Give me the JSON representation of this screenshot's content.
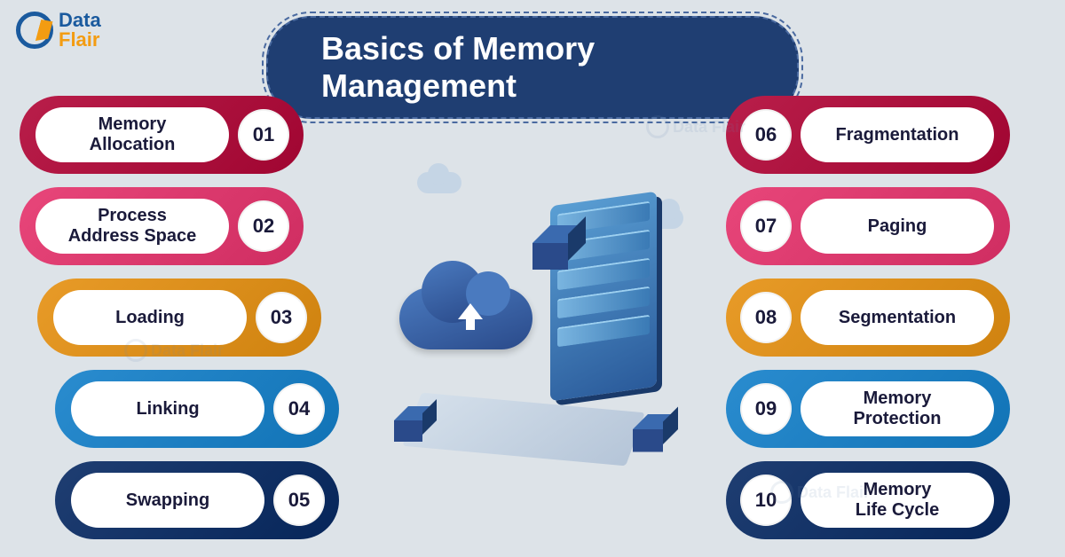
{
  "logo": {
    "top": "Data",
    "bottom": "Flair"
  },
  "title": "Basics of Memory Management",
  "colors": {
    "crimson": "#b91e4a",
    "pink": "#e8467a",
    "orange": "#e89b28",
    "blue": "#2a8ccf",
    "navy": "#1f3e72",
    "background": "#dde3e8"
  },
  "left_items": [
    {
      "num": "01",
      "label": "Memory\nAllocation",
      "color": "#b91e4a"
    },
    {
      "num": "02",
      "label": "Process\nAddress Space",
      "color": "#e8467a"
    },
    {
      "num": "03",
      "label": "Loading",
      "color": "#e89b28"
    },
    {
      "num": "04",
      "label": "Linking",
      "color": "#2a8ccf"
    },
    {
      "num": "05",
      "label": "Swapping",
      "color": "#1f3e72"
    }
  ],
  "right_items": [
    {
      "num": "06",
      "label": "Fragmentation",
      "color": "#b91e4a"
    },
    {
      "num": "07",
      "label": "Paging",
      "color": "#e8467a"
    },
    {
      "num": "08",
      "label": "Segmentation",
      "color": "#e89b28"
    },
    {
      "num": "09",
      "label": "Memory\nProtection",
      "color": "#2a8ccf"
    },
    {
      "num": "10",
      "label": "Memory\nLife Cycle",
      "color": "#1f3e72"
    }
  ],
  "watermark": "Data Flair"
}
